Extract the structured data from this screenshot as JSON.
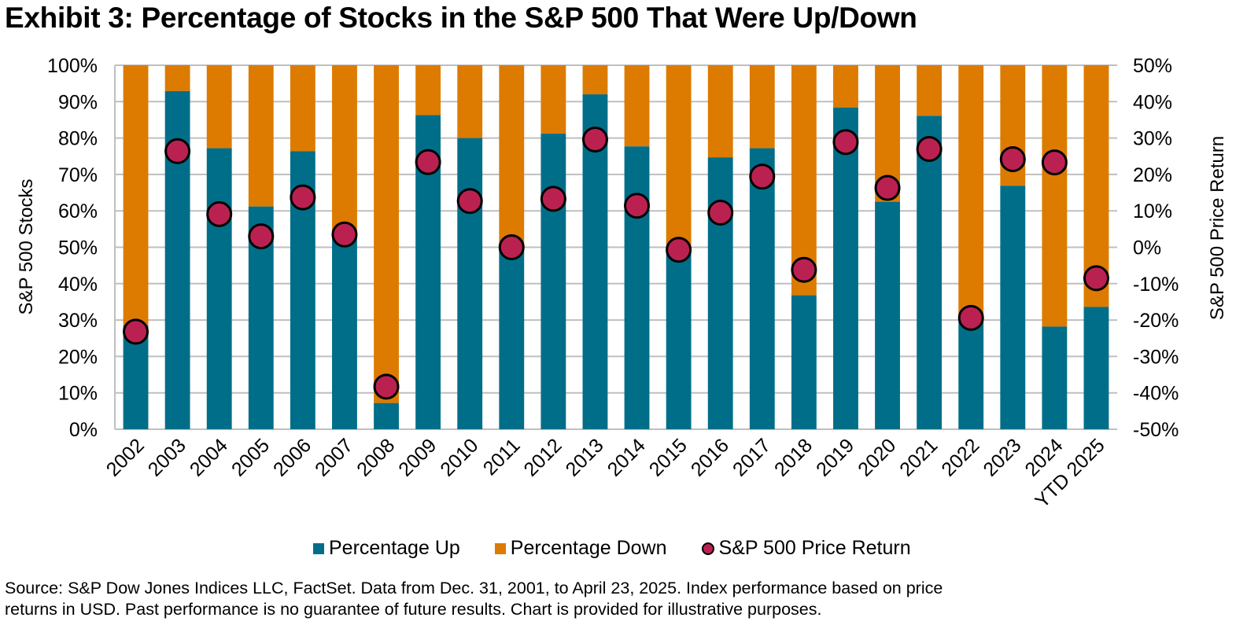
{
  "title": "Exhibit 3: Percentage of Stocks in the S&P 500 That Were Up/Down",
  "colors": {
    "up": "#006E89",
    "down": "#DC7B00",
    "return": "#BA2151",
    "grid": "#BFBFBF"
  },
  "legend": [
    {
      "label": "Percentage Up",
      "color": "#006E89",
      "marker": "square"
    },
    {
      "label": "Percentage Down",
      "color": "#DC7B00",
      "marker": "square"
    },
    {
      "label": "S&P 500 Price Return",
      "color": "#BA2151",
      "marker": "circle"
    }
  ],
  "footer": {
    "line1": "Source: S&P Dow Jones Indices LLC, FactSet. Data from Dec. 31, 2001, to April 23, 2025. Index performance based on price",
    "line2": "returns in USD. Past performance is no guarantee of future results. Chart is provided for illustrative purposes."
  },
  "chart_data": {
    "type": "bar",
    "stacked": true,
    "title": "Exhibit 3: Percentage of Stocks in the S&P 500 That Were Up/Down",
    "xlabel": "",
    "ylabel": "S&P 500 Stocks",
    "y2label": "S&P 500 Price Return",
    "ylim": [
      0,
      100
    ],
    "y2lim": [
      -50,
      50
    ],
    "yticks": [
      "0%",
      "10%",
      "20%",
      "30%",
      "40%",
      "50%",
      "60%",
      "70%",
      "80%",
      "90%",
      "100%"
    ],
    "y2ticks": [
      "-50%",
      "-40%",
      "-30%",
      "-20%",
      "-10%",
      "0%",
      "10%",
      "20%",
      "30%",
      "40%",
      "50%"
    ],
    "grid": true,
    "legend_position": "bottom",
    "categories": [
      "2002",
      "2003",
      "2004",
      "2005",
      "2006",
      "2007",
      "2008",
      "2009",
      "2010",
      "2011",
      "2012",
      "2013",
      "2014",
      "2015",
      "2016",
      "2017",
      "2018",
      "2019",
      "2020",
      "2021",
      "2022",
      "2023",
      "2024",
      "YTD 2025"
    ],
    "series": [
      {
        "name": "Percentage Up",
        "type": "bar",
        "axis": "left",
        "values": [
          28.5,
          92.9,
          77.2,
          61.2,
          76.4,
          52.5,
          7.2,
          86.3,
          80.0,
          49.4,
          81.2,
          92.0,
          77.7,
          48.6,
          74.7,
          77.2,
          36.8,
          88.4,
          62.5,
          86.1,
          30.4,
          66.9,
          28.2,
          33.6
        ]
      },
      {
        "name": "Percentage Down",
        "type": "bar",
        "axis": "left",
        "values": [
          71.5,
          7.1,
          22.8,
          38.8,
          23.6,
          47.5,
          92.8,
          13.7,
          20.0,
          50.6,
          18.8,
          8.0,
          22.3,
          51.4,
          25.3,
          22.8,
          63.2,
          11.6,
          37.5,
          13.9,
          69.6,
          33.1,
          71.8,
          66.4
        ]
      },
      {
        "name": "S&P 500 Price Return",
        "type": "scatter",
        "axis": "right",
        "values": [
          -23.2,
          26.4,
          9.1,
          3.0,
          13.7,
          3.5,
          -38.3,
          23.4,
          12.7,
          0.0,
          13.3,
          29.6,
          11.4,
          -0.7,
          9.5,
          19.4,
          -6.2,
          28.9,
          16.3,
          27.0,
          -19.4,
          24.2,
          23.3,
          -8.5
        ]
      }
    ]
  }
}
